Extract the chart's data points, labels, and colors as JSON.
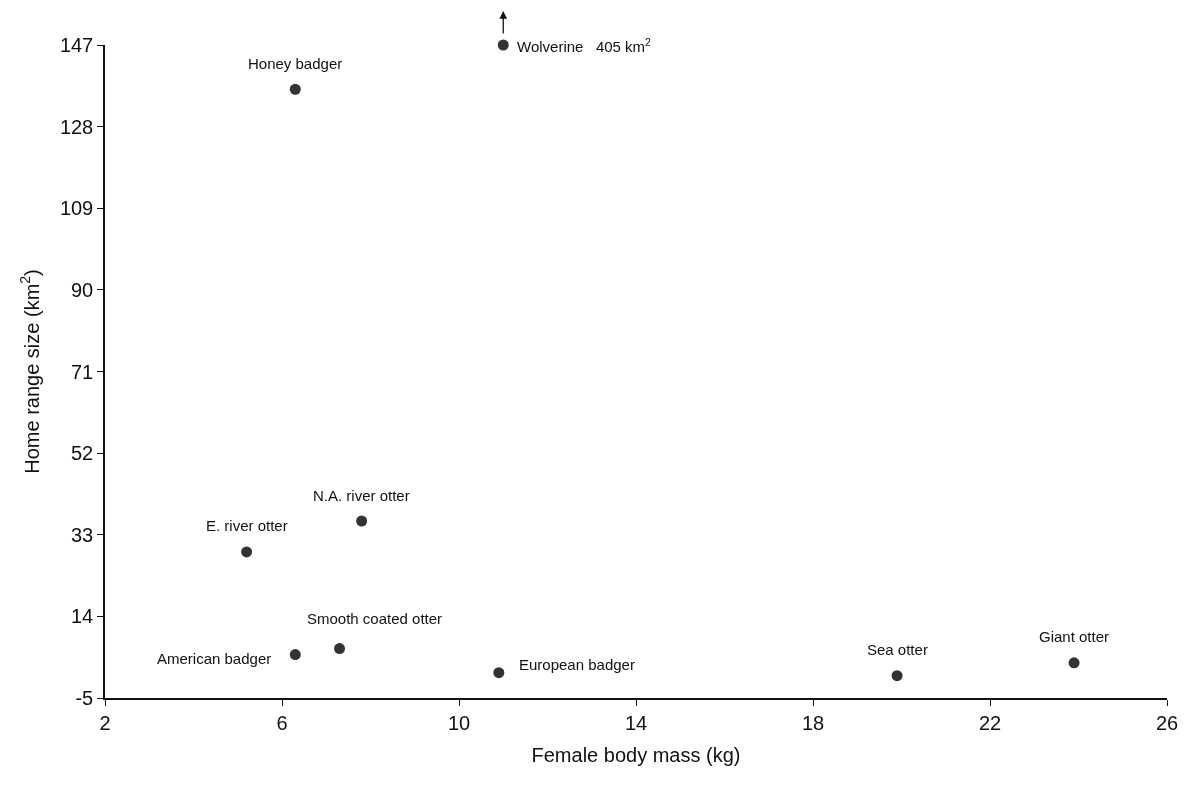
{
  "chart_data": {
    "type": "scatter",
    "xlabel": "Female body mass (kg)",
    "ylabel": "Home range size (km$^{2}$)",
    "x": [
      6.3,
      11.0,
      7.8,
      5.2,
      6.3,
      7.3,
      10.9,
      19.9,
      23.9
    ],
    "series": [
      {
        "color": "#333333",
        "values": [
          136.7,
          147,
          36.2,
          29.0,
          5.1,
          6.5,
          0.9,
          0.2,
          3.2
        ]
      }
    ],
    "annotations": [
      {
        "text": "Honey badger",
        "x": 6.3,
        "y": 136.7
      },
      {
        "text": "Wolverine   405 km$^{2}$",
        "x": 11.0,
        "y": 147
      },
      {
        "text": "N.A. river otter",
        "x": 7.8,
        "y": 36.2
      },
      {
        "text": "E. river otter",
        "x": 5.2,
        "y": 29.0
      },
      {
        "text": "American badger",
        "x": 6.3,
        "y": 5.1
      },
      {
        "text": "Smooth coated otter",
        "x": 7.3,
        "y": 6.5
      },
      {
        "text": "European badger",
        "x": 10.9,
        "y": 0.9
      },
      {
        "text": "Sea otter",
        "x": 19.9,
        "y": 0.2
      },
      {
        "text": "Giant otter",
        "x": 23.9,
        "y": 3.2
      }
    ],
    "xlim": [
      2,
      26
    ],
    "xticks": [
      2,
      6,
      10,
      14,
      18,
      22,
      26
    ],
    "ylim": [
      -5,
      147
    ],
    "yticks": [
      -5,
      14,
      33,
      52,
      71,
      90,
      109,
      128,
      147
    ],
    "marker": "circle"
  }
}
